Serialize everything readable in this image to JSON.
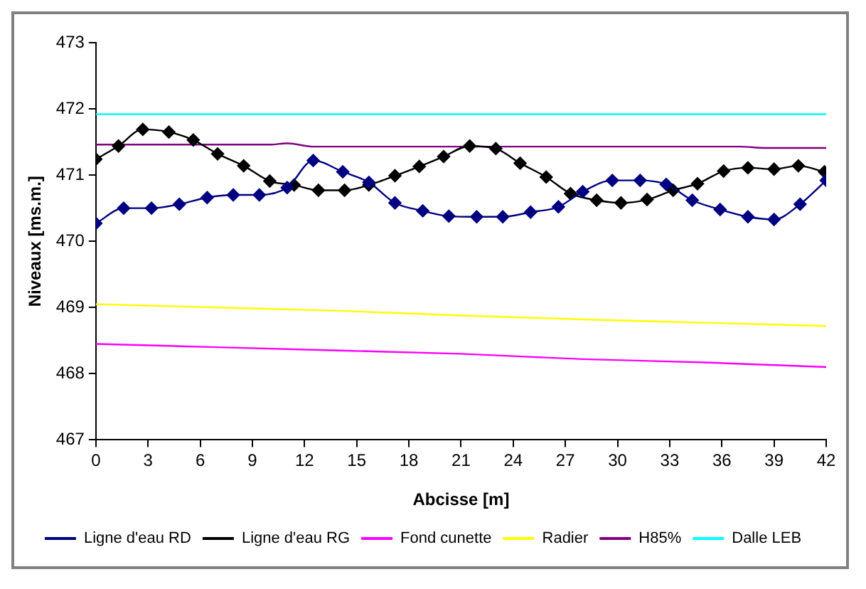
{
  "chart_data": {
    "type": "line",
    "xlabel": "Abcisse [m]",
    "ylabel": "Niveaux [ms.m.]",
    "xlim": [
      0,
      42
    ],
    "xticks": [
      0,
      3,
      6,
      9,
      12,
      15,
      18,
      21,
      24,
      27,
      30,
      33,
      36,
      39,
      42
    ],
    "ylim": [
      467,
      473
    ],
    "yticks": [
      467,
      468,
      469,
      470,
      471,
      472,
      473
    ],
    "grid": false,
    "legend": "bottom",
    "series": [
      {
        "name": "Ligne d'eau RD",
        "color": "#000080",
        "marker": "diamond",
        "x": [
          0,
          1.6,
          3.2,
          4.8,
          6.4,
          7.9,
          9.4,
          11.0,
          12.5,
          14.2,
          15.7,
          17.2,
          18.8,
          20.3,
          21.9,
          23.4,
          25.0,
          26.6,
          28.0,
          29.7,
          31.3,
          32.8,
          34.3,
          35.9,
          37.5,
          39.0,
          40.5,
          42
        ],
        "values": [
          470.27,
          470.5,
          470.5,
          470.56,
          470.66,
          470.7,
          470.7,
          470.81,
          471.22,
          471.05,
          470.89,
          470.58,
          470.46,
          470.38,
          470.37,
          470.37,
          470.44,
          470.52,
          470.75,
          470.92,
          470.92,
          470.86,
          470.62,
          470.48,
          470.37,
          470.33,
          470.56,
          470.92
        ]
      },
      {
        "name": "Ligne d'eau RG",
        "color": "#000000",
        "marker": "diamond",
        "x": [
          0,
          1.3,
          2.7,
          4.2,
          5.6,
          7.0,
          8.5,
          10.0,
          11.4,
          12.8,
          14.3,
          15.7,
          17.2,
          18.6,
          20.0,
          21.5,
          23.0,
          24.4,
          25.9,
          27.3,
          28.8,
          30.2,
          31.7,
          33.2,
          34.6,
          36.1,
          37.5,
          39.0,
          40.4,
          41.9
        ],
        "values": [
          471.24,
          471.44,
          471.69,
          471.65,
          471.53,
          471.32,
          471.14,
          470.91,
          470.85,
          470.77,
          470.77,
          470.85,
          470.99,
          471.13,
          471.28,
          471.44,
          471.4,
          471.18,
          470.97,
          470.72,
          470.62,
          470.58,
          470.63,
          470.77,
          470.87,
          471.06,
          471.11,
          471.09,
          471.14,
          471.05
        ]
      },
      {
        "name": "Fond cunette",
        "color": "#ff00ff",
        "marker": "none",
        "x": [
          0,
          7,
          14,
          21,
          28,
          35,
          42
        ],
        "values": [
          468.45,
          468.4,
          468.35,
          468.3,
          468.22,
          468.17,
          468.1
        ]
      },
      {
        "name": "Radier",
        "color": "#ffff00",
        "marker": "none",
        "x": [
          0,
          7,
          14,
          21,
          28,
          35,
          42
        ],
        "values": [
          469.05,
          469.0,
          468.95,
          468.88,
          468.82,
          468.77,
          468.72
        ]
      },
      {
        "name": "H85%",
        "color": "#800080",
        "marker": "none",
        "x": [
          0,
          10,
          11,
          12.5,
          37,
          38.5,
          42
        ],
        "values": [
          471.46,
          471.46,
          471.48,
          471.43,
          471.43,
          471.41,
          471.41
        ]
      },
      {
        "name": "Dalle LEB",
        "color": "#00ffff",
        "marker": "none",
        "x": [
          0,
          42
        ],
        "values": [
          471.92,
          471.92
        ]
      }
    ]
  }
}
